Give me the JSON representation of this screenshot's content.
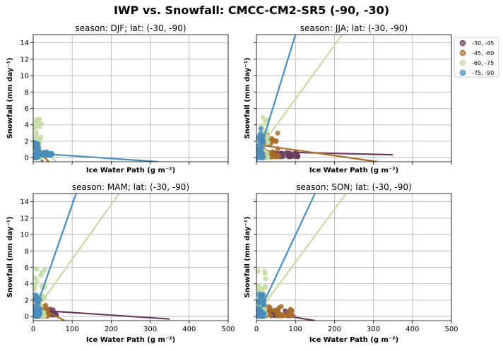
{
  "figure": {
    "suptitle": "IWP vs. Snowfall: CMCC-CM2-SR5  (-90, -30)"
  },
  "legend": {
    "placement": "right, outside, top",
    "entries": [
      {
        "label": "-30, -45",
        "color": "#6b3a5f"
      },
      {
        "label": "-45, -60",
        "color": "#a86d2a"
      },
      {
        "label": "-60, -75",
        "color": "#c5dca8"
      },
      {
        "label": "-75, -90",
        "color": "#4a8dbb"
      }
    ]
  },
  "colors": {
    "lat_30_45": "#6b3a5f",
    "lat_45_60": "#a86d2a",
    "lat_60_75": "#c5dca8",
    "lat_75_90": "#4a8dbb",
    "grid": "#b0b0b0"
  },
  "chart_data": [
    {
      "type": "scatter",
      "title": "season: DJF; lat: (-30, -90)",
      "xlabel": "Ice Water Path (g m⁻²)",
      "ylabel": "Snowfall (mm day⁻¹)",
      "xlim": [
        0,
        500
      ],
      "ylim": [
        -0.5,
        15
      ],
      "xticks": [
        0,
        100,
        200,
        300,
        400,
        500
      ],
      "yticks": [
        0,
        2,
        4,
        6,
        8,
        10,
        12,
        14
      ],
      "show_xticklabels": false,
      "show_yticklabels": true,
      "grid": true,
      "series": [
        {
          "name": "-30, -45",
          "clusters": [
            {
              "x": [
                2,
                10
              ],
              "y": [
                0,
                0.4
              ]
            }
          ],
          "fit": {
            "x": [
              0,
              25
            ],
            "y": [
              0.9,
              -0.5
            ]
          }
        },
        {
          "name": "-45, -60",
          "clusters": [
            {
              "x": [
                2,
                12
              ],
              "y": [
                0,
                1.2
              ]
            }
          ],
          "fit": {
            "x": [
              0,
              40
            ],
            "y": [
              1.4,
              -0.5
            ]
          }
        },
        {
          "name": "-60, -75",
          "clusters": [
            {
              "x": [
                2,
                22
              ],
              "y": [
                0,
                4.8
              ]
            }
          ],
          "fit": {
            "x": [
              0,
              60
            ],
            "y": [
              1.8,
              -0.5
            ]
          }
        },
        {
          "name": "-75, -90",
          "clusters": [
            {
              "x": [
                3,
                15
              ],
              "y": [
                0,
                1.9
              ]
            },
            {
              "x": [
                12,
                48
              ],
              "y": [
                0.3,
                0.7
              ]
            }
          ],
          "fit": {
            "x": [
              0,
              320
            ],
            "y": [
              0.55,
              -0.5
            ]
          }
        }
      ]
    },
    {
      "type": "scatter",
      "title": "season: JJA; lat: (-30, -90)",
      "xlabel": "Ice Water Path (g m⁻²)",
      "ylabel": "Snowfall (mm day⁻¹)",
      "xlim": [
        0,
        500
      ],
      "ylim": [
        -0.5,
        15
      ],
      "xticks": [
        0,
        100,
        200,
        300,
        400,
        500
      ],
      "yticks": [
        0,
        2,
        4,
        6,
        8,
        10,
        12,
        14
      ],
      "show_xticklabels": false,
      "show_yticklabels": false,
      "grid": true,
      "series": [
        {
          "name": "-30, -45",
          "clusters": [
            {
              "x": [
                5,
                110
              ],
              "y": [
                0.1,
                0.7
              ]
            }
          ],
          "fit": {
            "x": [
              0,
              350
            ],
            "y": [
              0.75,
              0.35
            ]
          }
        },
        {
          "name": "-45, -60",
          "clusters": [
            {
              "x": [
                10,
                60
              ],
              "y": [
                0.1,
                3.0
              ]
            }
          ],
          "fit": {
            "x": [
              0,
              310
            ],
            "y": [
              1.6,
              -0.5
            ]
          }
        },
        {
          "name": "-60, -75",
          "clusters": [
            {
              "x": [
                3,
                30
              ],
              "y": [
                0,
                5.0
              ]
            }
          ],
          "fit": {
            "x": [
              0,
              220
            ],
            "y": [
              0.6,
              15
            ]
          }
        },
        {
          "name": "-75, -90",
          "clusters": [
            {
              "x": [
                3,
                18
              ],
              "y": [
                0,
                3.8
              ]
            }
          ],
          "fit": {
            "x": [
              0,
              100
            ],
            "y": [
              -0.5,
              15
            ]
          }
        }
      ]
    },
    {
      "type": "scatter",
      "title": "season: MAM; lat: (-30, -90)",
      "xlabel": "Ice Water Path (g m⁻²)",
      "ylabel": "Snowfall (mm day⁻¹)",
      "xlim": [
        0,
        500
      ],
      "ylim": [
        -0.5,
        15
      ],
      "xticks": [
        0,
        100,
        200,
        300,
        400,
        500
      ],
      "yticks": [
        0,
        2,
        4,
        6,
        8,
        10,
        12,
        14
      ],
      "show_xticklabels": true,
      "show_yticklabels": true,
      "grid": true,
      "series": [
        {
          "name": "-30, -45",
          "clusters": [
            {
              "x": [
                10,
                65
              ],
              "y": [
                0.2,
                1.0
              ]
            }
          ],
          "fit": {
            "x": [
              0,
              350
            ],
            "y": [
              0.8,
              -0.3
            ]
          }
        },
        {
          "name": "-45, -60",
          "clusters": [
            {
              "x": [
                5,
                40
              ],
              "y": [
                0,
                1.5
              ]
            }
          ],
          "fit": {
            "x": [
              0,
              80
            ],
            "y": [
              1.5,
              -0.5
            ]
          }
        },
        {
          "name": "-60, -75",
          "clusters": [
            {
              "x": [
                3,
                30
              ],
              "y": [
                0,
                6.2
              ]
            }
          ],
          "fit": {
            "x": [
              0,
              220
            ],
            "y": [
              0.3,
              15
            ]
          }
        },
        {
          "name": "-75, -90",
          "clusters": [
            {
              "x": [
                3,
                18
              ],
              "y": [
                0,
                3.0
              ]
            }
          ],
          "fit": {
            "x": [
              0,
              110
            ],
            "y": [
              0,
              15
            ]
          }
        }
      ]
    },
    {
      "type": "scatter",
      "title": "season: SON; lat: (-30, -90)",
      "xlabel": "Ice Water Path (g m⁻²)",
      "ylabel": "Snowfall (mm day⁻¹)",
      "xlim": [
        0,
        500
      ],
      "ylim": [
        -0.5,
        15
      ],
      "xticks": [
        0,
        100,
        200,
        300,
        400,
        500
      ],
      "yticks": [
        0,
        2,
        4,
        6,
        8,
        10,
        12,
        14
      ],
      "show_xticklabels": true,
      "show_yticklabels": false,
      "grid": true,
      "series": [
        {
          "name": "-30, -45",
          "clusters": [
            {
              "x": [
                5,
                90
              ],
              "y": [
                0.1,
                0.9
              ]
            }
          ],
          "fit": {
            "x": [
              0,
              150
            ],
            "y": [
              0.7,
              -0.5
            ]
          }
        },
        {
          "name": "-45, -60",
          "clusters": [
            {
              "x": [
                10,
                95
              ],
              "y": [
                0.1,
                1.3
              ]
            }
          ],
          "fit": {
            "x": [
              0,
              100
            ],
            "y": [
              1.0,
              0.1
            ]
          }
        },
        {
          "name": "-60, -75",
          "clusters": [
            {
              "x": [
                3,
                25
              ],
              "y": [
                0,
                6.3
              ]
            }
          ],
          "fit": {
            "x": [
              0,
              230
            ],
            "y": [
              0.2,
              15
            ]
          }
        },
        {
          "name": "-75, -90",
          "clusters": [
            {
              "x": [
                3,
                20
              ],
              "y": [
                0,
                2.8
              ]
            }
          ],
          "fit": {
            "x": [
              0,
              150
            ],
            "y": [
              -0.2,
              15
            ]
          }
        }
      ]
    }
  ]
}
